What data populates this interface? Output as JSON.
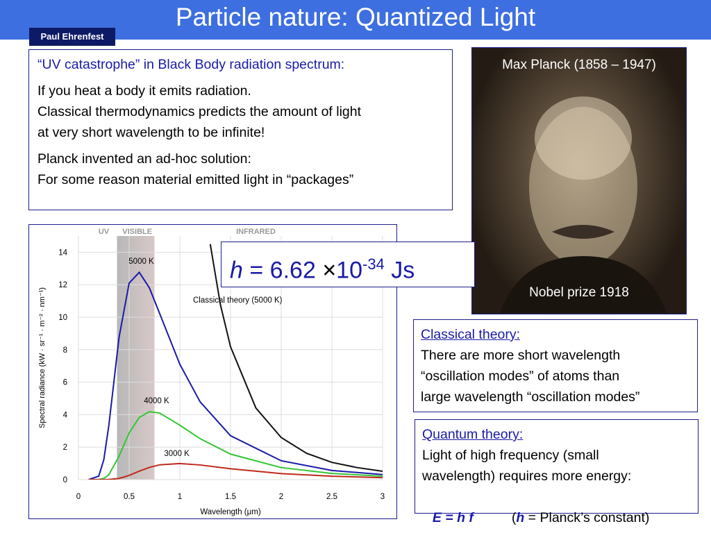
{
  "header": {
    "title": "Particle nature: Quantized Light",
    "author": "Paul Ehrenfest"
  },
  "intro": {
    "heading": "“UV catastrophe” in Black Body radiation spectrum:",
    "paragraphs": [
      [
        "If you heat a body it emits radiation.",
        "Classical thermodynamics predicts the amount of light",
        "at very short wavelength to be infinite!"
      ],
      [
        "Planck invented an ad-hoc solution:",
        "For some reason material emitted light in “packages”"
      ]
    ]
  },
  "portrait": {
    "caption": "Max Planck (1858 – 1947)",
    "note": "Nobel prize 1918"
  },
  "formula": {
    "symbol": "h",
    "equals": "= 6.62",
    "times": "×",
    "base": "10",
    "exponent": "-34",
    "unit": "Js"
  },
  "classical": {
    "heading": "Classical theory:",
    "lines": [
      "There are more short wavelength",
      "“oscillation modes” of atoms than",
      "large wavelength “oscillation modes”"
    ]
  },
  "quantum": {
    "heading": "Quantum theory:",
    "lines": [
      "Light of high frequency (small",
      "wavelength) requires more energy:"
    ],
    "equation": "E = h f",
    "note": [
      "(",
      "h",
      " = Planck’s constant)"
    ]
  },
  "figure": {
    "type": "line",
    "x_label": "Wavelength (μm)",
    "y_label": "Spectral radiance (kW · sr⁻¹ · m⁻² · nm⁻¹)",
    "bands": [
      "UV",
      "VISIBLE",
      "INFRARED"
    ],
    "visible_range": [
      0.38,
      0.75
    ],
    "xlim": [
      0,
      3
    ],
    "ylim": [
      0,
      15
    ],
    "xticks": [
      0,
      0.5,
      1,
      1.5,
      2,
      2.5,
      3
    ],
    "yticks": [
      0,
      2,
      4,
      6,
      8,
      10,
      12,
      14
    ],
    "grid": true,
    "x": [
      0.1,
      0.2,
      0.25,
      0.3,
      0.4,
      0.5,
      0.6,
      0.7,
      0.8,
      1,
      1.2,
      1.5,
      2,
      2.5,
      3
    ],
    "series": [
      {
        "name": "5000 K",
        "color": "#1a1aa8",
        "values": [
          0,
          0.21,
          1.22,
          3.35,
          8.74,
          12.1,
          12.76,
          11.8,
          10.24,
          7.1,
          4.79,
          2.7,
          1.16,
          0.56,
          0.31
        ]
      },
      {
        "name": "4000 K",
        "color": "#33c633",
        "values": [
          0,
          0.01,
          0.07,
          0.3,
          1.44,
          2.87,
          3.83,
          4.18,
          4.1,
          3.35,
          2.52,
          1.57,
          0.74,
          0.38,
          0.21
        ]
      },
      {
        "name": "3000 K",
        "color": "#c0281c",
        "values": [
          0,
          0,
          0,
          0.01,
          0.07,
          0.26,
          0.52,
          0.75,
          0.91,
          0.99,
          0.9,
          0.67,
          0.37,
          0.21,
          0.12
        ]
      },
      {
        "name": "Classical theory (5000 K)",
        "color": "#111111",
        "x": [
          1.3,
          1.4,
          1.5,
          1.75,
          2,
          2.25,
          2.5,
          2.75,
          3
        ],
        "values": [
          14.5,
          10.78,
          8.18,
          4.41,
          2.59,
          1.62,
          1.06,
          0.74,
          0.51
        ]
      }
    ]
  }
}
